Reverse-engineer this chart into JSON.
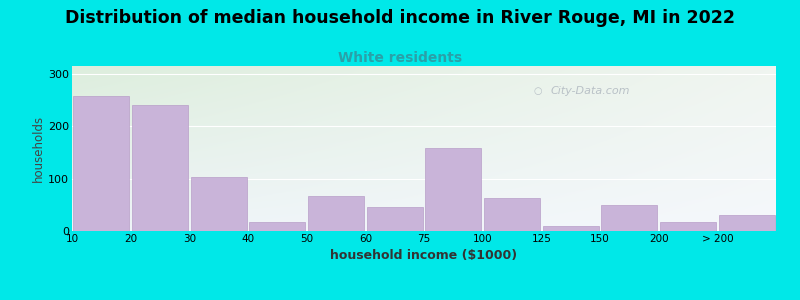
{
  "title": "Distribution of median household income in River Rouge, MI in 2022",
  "subtitle": "White residents",
  "xlabel": "household income ($1000)",
  "ylabel": "households",
  "bar_heights": [
    258,
    240,
    103,
    18,
    67,
    45,
    158,
    63,
    10,
    50,
    18,
    30
  ],
  "bar_color": "#c9b4d9",
  "bar_edge_color": "#b89ec8",
  "bg_color": "#00e8e8",
  "title_fontsize": 12.5,
  "subtitle_fontsize": 10,
  "subtitle_color": "#2aa0a8",
  "yticks": [
    0,
    100,
    200,
    300
  ],
  "ylim": [
    0,
    315
  ],
  "watermark": "City-Data.com",
  "tick_labels": [
    "10",
    "20",
    "30",
    "40",
    "50",
    "60",
    "75",
    "100",
    "125",
    "150",
    "200",
    "> 200"
  ],
  "grad_top_left": "#ddeedd",
  "grad_bottom_right": "#eef4f8"
}
